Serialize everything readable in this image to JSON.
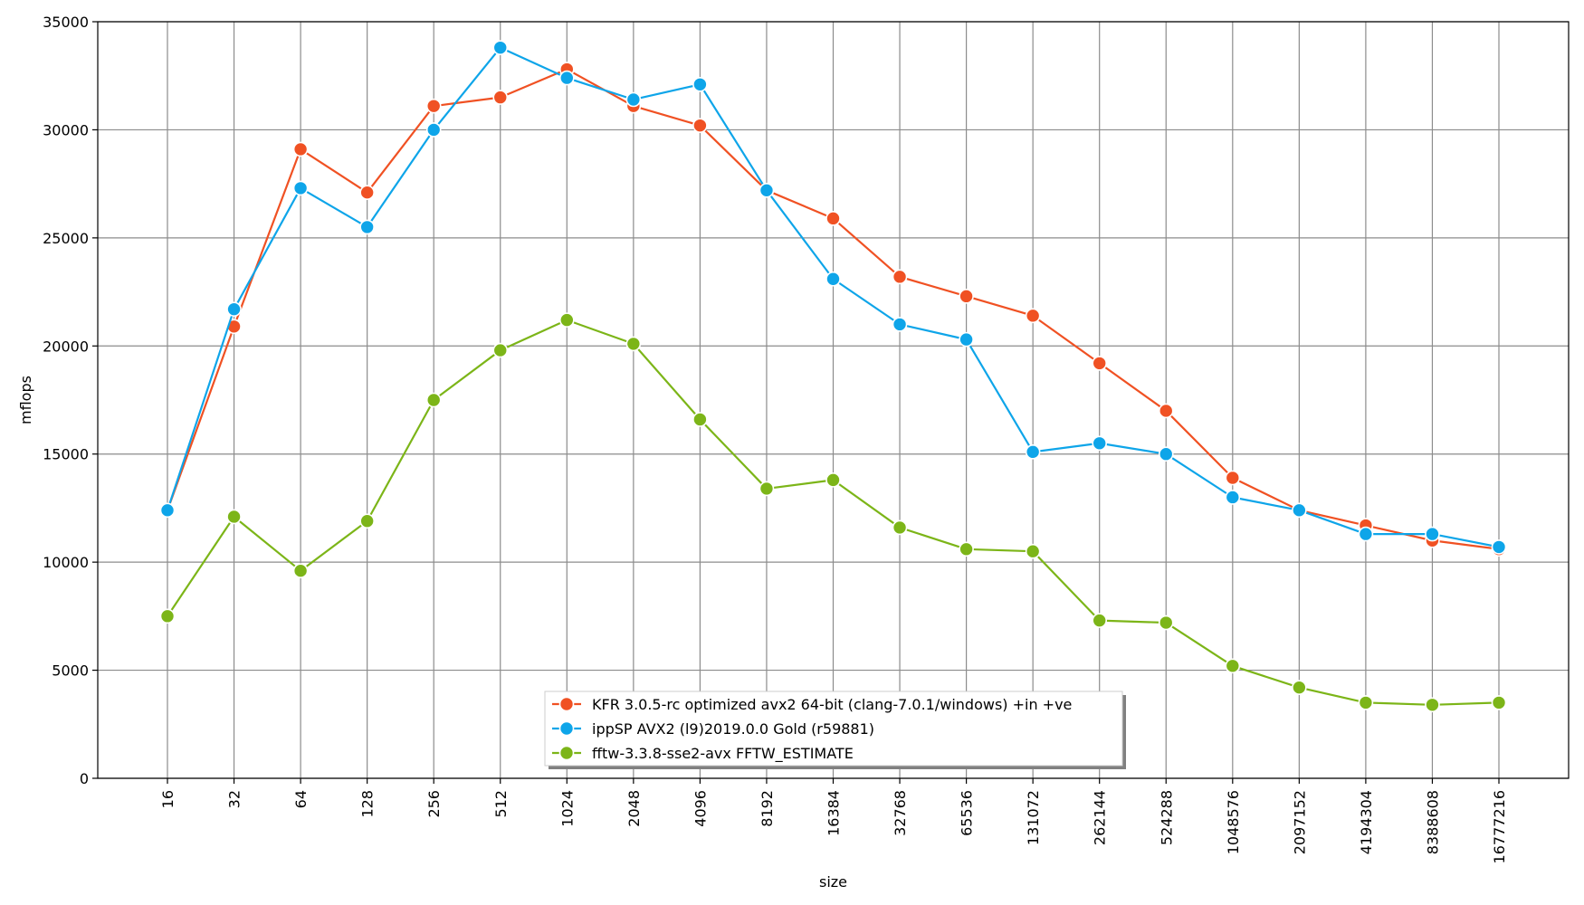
{
  "chart_data": {
    "type": "line",
    "title": "",
    "xlabel": "size",
    "ylabel": "mflops",
    "categories": [
      "16",
      "32",
      "64",
      "128",
      "256",
      "512",
      "1024",
      "2048",
      "4096",
      "8192",
      "16384",
      "32768",
      "65536",
      "131072",
      "262144",
      "524288",
      "1048576",
      "2097152",
      "4194304",
      "8388608",
      "16777216"
    ],
    "ylim": [
      0,
      35000
    ],
    "yticks": [
      0,
      5000,
      10000,
      15000,
      20000,
      25000,
      30000,
      35000
    ],
    "ytick_labels": [
      "0",
      "5000",
      "10000",
      "15000",
      "20000",
      "25000",
      "30000",
      "35000"
    ],
    "grid": true,
    "legend_position": "bottom-center",
    "series": [
      {
        "name": "KFR 3.0.5-rc optimized avx2 64-bit (clang-7.0.1/windows) +in +ve",
        "color": "#f05123",
        "values": [
          12400,
          20900,
          29100,
          27100,
          31100,
          31500,
          32800,
          31100,
          30200,
          27200,
          25900,
          23200,
          22300,
          21400,
          19200,
          17000,
          13900,
          12400,
          11700,
          11000,
          10600
        ]
      },
      {
        "name": "ippSP AVX2 (l9)2019.0.0 Gold (r59881)",
        "color": "#0ea5e9",
        "values": [
          12400,
          21700,
          27300,
          25500,
          30000,
          33800,
          32400,
          31400,
          32100,
          27200,
          23100,
          21000,
          20300,
          15100,
          15500,
          15000,
          13000,
          12400,
          11300,
          11300,
          10700
        ]
      },
      {
        "name": "fftw-3.3.8-sse2-avx FFTW_ESTIMATE",
        "color": "#7cb518",
        "values": [
          7500,
          12100,
          9600,
          11900,
          17500,
          19800,
          21200,
          20100,
          16600,
          13400,
          13800,
          11600,
          10600,
          10500,
          7300,
          7200,
          5200,
          4200,
          3500,
          3400,
          3500
        ]
      }
    ]
  }
}
